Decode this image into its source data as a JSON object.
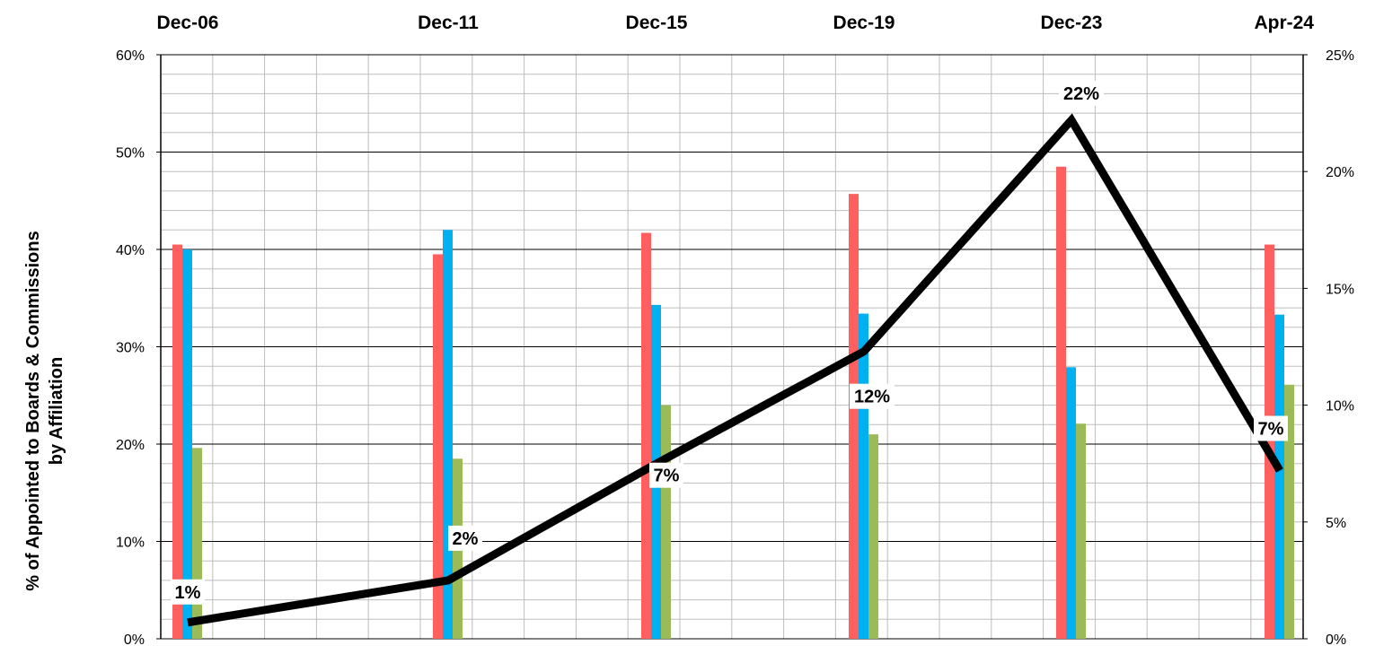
{
  "chart_data": {
    "type": "bar",
    "categories": [
      "Dec-06",
      "Dec-11",
      "Dec-15",
      "Dec-19",
      "Dec-23",
      "Apr-24"
    ],
    "ylabel_line1": "% of Appointed to Boards &  Commissions",
    "ylabel_line2": "by Affiliation",
    "ylim": [
      0,
      60
    ],
    "y_ticks": [
      "0%",
      "10%",
      "20%",
      "30%",
      "40%",
      "50%",
      "60%"
    ],
    "y2lim": [
      0,
      25
    ],
    "y2_ticks": [
      "0%",
      "5%",
      "10%",
      "15%",
      "20%",
      "25%"
    ],
    "grid": true,
    "legend": "none",
    "series": [
      {
        "axis": "left",
        "type": "bar",
        "color": "#ff5f5f",
        "values": [
          40.5,
          39.5,
          41.7,
          45.7,
          48.5,
          40.5
        ]
      },
      {
        "axis": "left",
        "type": "bar",
        "color": "#00b0f0",
        "values": [
          40,
          42,
          34.3,
          33.4,
          27.9,
          33.3
        ]
      },
      {
        "axis": "left",
        "type": "bar",
        "color": "#9bbb59",
        "values": [
          19.6,
          18.5,
          24,
          21,
          22.1,
          26.1
        ]
      },
      {
        "axis": "right",
        "type": "line",
        "color": "#000000",
        "values": [
          0.7,
          2.5,
          7.5,
          12.3,
          22.2,
          7.2
        ],
        "labels": [
          "1%",
          "2%",
          "7%",
          "12%",
          "22%",
          "7%"
        ]
      }
    ]
  }
}
